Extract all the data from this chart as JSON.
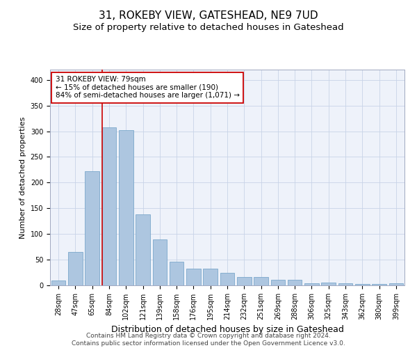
{
  "title": "31, ROKEBY VIEW, GATESHEAD, NE9 7UD",
  "subtitle": "Size of property relative to detached houses in Gateshead",
  "xlabel": "Distribution of detached houses by size in Gateshead",
  "ylabel": "Number of detached properties",
  "categories": [
    "28sqm",
    "47sqm",
    "65sqm",
    "84sqm",
    "102sqm",
    "121sqm",
    "139sqm",
    "158sqm",
    "176sqm",
    "195sqm",
    "214sqm",
    "232sqm",
    "251sqm",
    "269sqm",
    "288sqm",
    "306sqm",
    "325sqm",
    "343sqm",
    "362sqm",
    "380sqm",
    "399sqm"
  ],
  "values": [
    9,
    65,
    222,
    307,
    302,
    138,
    89,
    46,
    32,
    32,
    24,
    16,
    16,
    11,
    11,
    4,
    5,
    4,
    3,
    3,
    4
  ],
  "bar_color": "#adc6e0",
  "bar_edge_color": "#6a9ec5",
  "vline_color": "#cc0000",
  "annotation_text": "31 ROKEBY VIEW: 79sqm\n← 15% of detached houses are smaller (190)\n84% of semi-detached houses are larger (1,071) →",
  "annotation_box_color": "#ffffff",
  "annotation_box_edge": "#cc0000",
  "ylim": [
    0,
    420
  ],
  "yticks": [
    0,
    50,
    100,
    150,
    200,
    250,
    300,
    350,
    400
  ],
  "background_color": "#eef2fa",
  "footer_text": "Contains HM Land Registry data © Crown copyright and database right 2024.\nContains public sector information licensed under the Open Government Licence v3.0.",
  "title_fontsize": 11,
  "subtitle_fontsize": 9.5,
  "xlabel_fontsize": 9,
  "ylabel_fontsize": 8,
  "tick_fontsize": 7,
  "annotation_fontsize": 7.5,
  "footer_fontsize": 6.5
}
